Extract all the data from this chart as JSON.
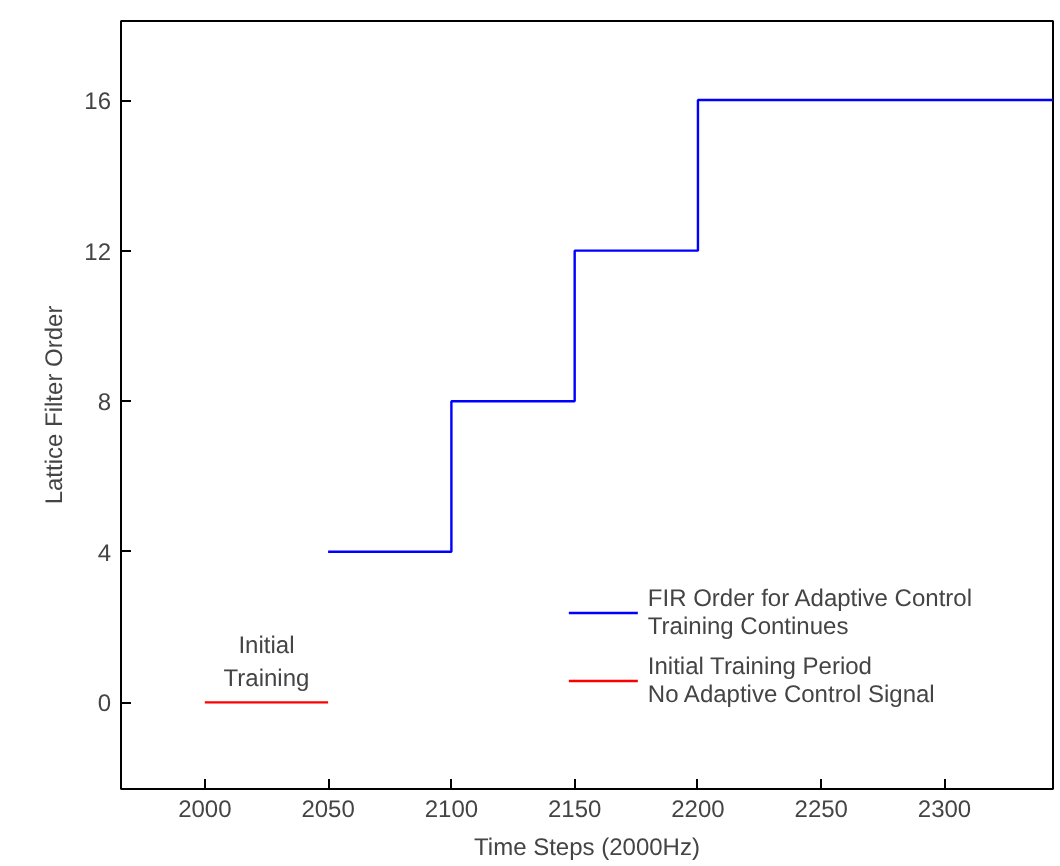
{
  "chart_data": {
    "type": "line",
    "xlabel": "Time Steps (2000Hz)",
    "ylabel": "Lattice Filter Order",
    "xlim": [
      1966,
      2344
    ],
    "ylim": [
      -2.3,
      18.1
    ],
    "xticks": [
      2000,
      2050,
      2100,
      2150,
      2200,
      2250,
      2300
    ],
    "yticks": [
      0,
      4,
      8,
      12,
      16
    ],
    "series": [
      {
        "name": "FIR Order for Adaptive Control\nTraining Continues",
        "type": "step",
        "color": "#0000ff",
        "x": [
          2050,
          2100,
          2150,
          2200,
          2344
        ],
        "values": [
          4,
          8,
          12,
          16,
          16
        ]
      },
      {
        "name": "Initial Training Period\nNo Adaptive Control Signal",
        "color": "#ff0000",
        "x": [
          2000,
          2050
        ],
        "values": [
          0,
          0
        ]
      }
    ],
    "annotations": [
      "Initial\nTraining"
    ],
    "legend": "bottom right",
    "grid": false
  }
}
